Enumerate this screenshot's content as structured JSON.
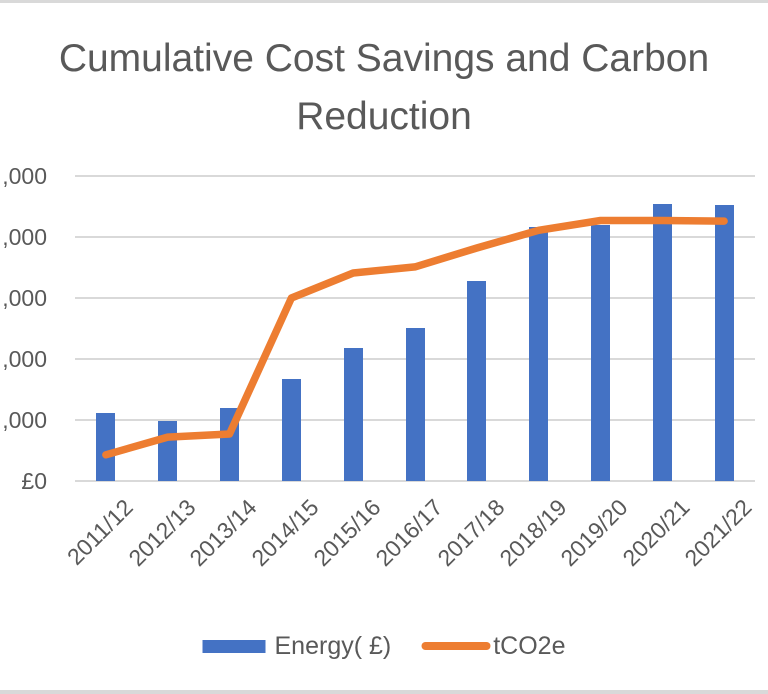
{
  "page": {
    "background": "#ffffff",
    "edge_strip_color": "#d9d9d9"
  },
  "chart_data": {
    "type": "combo-bar-line",
    "title": "Cumulative Cost Savings and Carbon Reduction",
    "title_color": "#595959",
    "categories": [
      "2011/12",
      "2012/13",
      "2013/14",
      "2014/15",
      "2015/16",
      "2016/17",
      "2017/18",
      "2018/19",
      "2019/20",
      "2020/21",
      "2021/22"
    ],
    "series": [
      {
        "name": "Energy( £)",
        "type": "bar",
        "color": "#4472c4",
        "values_axis_units": [
          1.11,
          0.98,
          1.2,
          1.67,
          2.18,
          2.51,
          3.28,
          4.16,
          4.2,
          4.54,
          4.52
        ]
      },
      {
        "name": "tCO2e",
        "type": "line",
        "color": "#ed7d31",
        "values_axis_units": [
          0.43,
          0.72,
          0.77,
          3.0,
          3.41,
          3.51,
          3.82,
          4.11,
          4.27,
          4.27,
          4.26
        ]
      }
    ],
    "y_axis": {
      "tick_labels_bottom_to_top": [
        "£0",
        ",000",
        ",000",
        ",000",
        ",000",
        ",000"
      ],
      "note": "Left-axis tick labels are cropped at the screenshot edge (only the ',000' suffix is visible); values are recorded in gridline units where one gridline interval = 1 unit, axis range 0 to 5 units.",
      "axis_units_max": 5,
      "gridlines": true,
      "gridline_color": "#d9d9d9",
      "label_color": "#595959"
    },
    "x_axis": {
      "label_color": "#595959",
      "label_rotation_deg": -45
    },
    "legend": {
      "position": "bottom",
      "entries": [
        "Energy( £)",
        "tCO2e"
      ],
      "text_color": "#595959"
    }
  }
}
